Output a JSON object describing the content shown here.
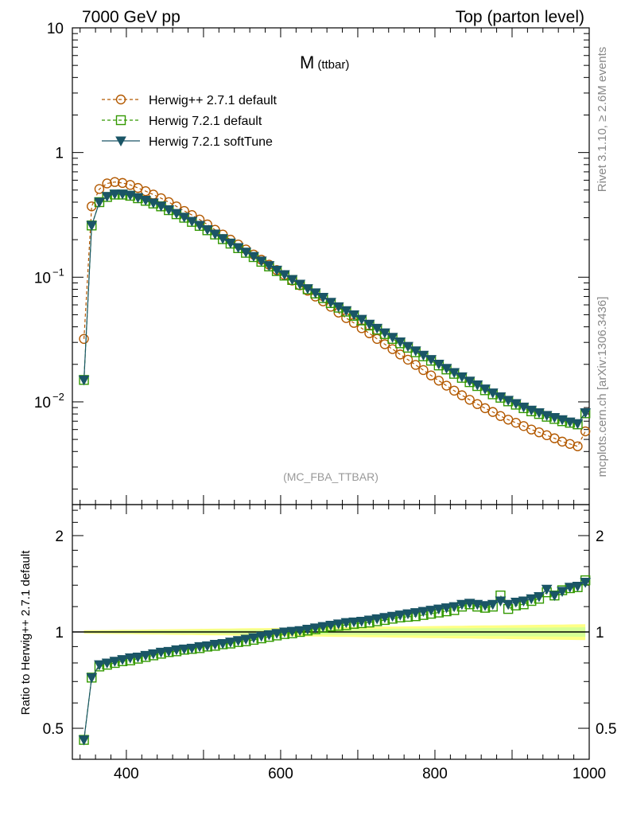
{
  "header": {
    "left": "7000 GeV pp",
    "right": "Top (parton level)"
  },
  "side_labels": {
    "rivet": "Rivet 3.1.10, ≥ 2.6M events",
    "source": "mcplots.cern.ch [arXiv:1306.3436]"
  },
  "chart_data": [
    {
      "type": "line",
      "title": "M",
      "title_sub": "(ttbar)",
      "watermark": "(MC_FBA_TTBAR)",
      "yscale": "log",
      "xlim": [
        330,
        1000
      ],
      "ylim": [
        0.0015,
        10
      ],
      "y_ticks": [
        {
          "v": 10,
          "label": "10"
        },
        {
          "v": 1,
          "label": "1"
        },
        {
          "v": 0.1,
          "label": "10",
          "exp": "−1"
        },
        {
          "v": 0.01,
          "label": "10",
          "exp": "−2"
        }
      ],
      "legend_position": "top-left",
      "x": [
        345,
        355,
        365,
        375,
        385,
        395,
        405,
        415,
        425,
        435,
        445,
        455,
        465,
        475,
        485,
        495,
        505,
        515,
        525,
        535,
        545,
        555,
        565,
        575,
        585,
        595,
        605,
        615,
        625,
        635,
        645,
        655,
        665,
        675,
        685,
        695,
        705,
        715,
        725,
        735,
        745,
        755,
        765,
        775,
        785,
        795,
        805,
        815,
        825,
        835,
        845,
        855,
        865,
        875,
        885,
        895,
        905,
        915,
        925,
        935,
        945,
        955,
        965,
        975,
        985,
        995
      ],
      "series": [
        {
          "name": "Herwig++ 2.7.1 default",
          "color": "#b35900",
          "marker": "circle-open",
          "dash": "4,3",
          "values": [
            0.032,
            0.37,
            0.51,
            0.565,
            0.58,
            0.57,
            0.55,
            0.52,
            0.49,
            0.46,
            0.43,
            0.4,
            0.37,
            0.34,
            0.315,
            0.29,
            0.265,
            0.24,
            0.22,
            0.2,
            0.183,
            0.167,
            0.152,
            0.138,
            0.126,
            0.114,
            0.104,
            0.094,
            0.086,
            0.078,
            0.07,
            0.064,
            0.058,
            0.052,
            0.047,
            0.043,
            0.039,
            0.0355,
            0.032,
            0.029,
            0.0265,
            0.024,
            0.0218,
            0.0198,
            0.018,
            0.0163,
            0.0148,
            0.0135,
            0.0123,
            0.0113,
            0.0104,
            0.0096,
            0.0089,
            0.0083,
            0.0077,
            0.0072,
            0.0068,
            0.0064,
            0.006,
            0.0057,
            0.0054,
            0.0051,
            0.0048,
            0.0046,
            0.0044,
            0.0058
          ]
        },
        {
          "name": "Herwig 7.2.1 default",
          "color": "#339900",
          "marker": "square-open",
          "dash": "4,3",
          "values": [
            0.015,
            0.26,
            0.4,
            0.44,
            0.46,
            0.46,
            0.45,
            0.43,
            0.41,
            0.39,
            0.37,
            0.345,
            0.32,
            0.3,
            0.278,
            0.258,
            0.238,
            0.22,
            0.202,
            0.186,
            0.171,
            0.157,
            0.145,
            0.133,
            0.122,
            0.112,
            0.103,
            0.095,
            0.087,
            0.08,
            0.074,
            0.068,
            0.062,
            0.057,
            0.053,
            0.049,
            0.045,
            0.041,
            0.038,
            0.035,
            0.032,
            0.0295,
            0.0272,
            0.025,
            0.0232,
            0.0214,
            0.0196,
            0.0182,
            0.0168,
            0.0156,
            0.0144,
            0.0134,
            0.0124,
            0.0115,
            0.0108,
            0.0101,
            0.0095,
            0.0089,
            0.0084,
            0.008,
            0.0076,
            0.0073,
            0.007,
            0.0068,
            0.0066,
            0.0081
          ]
        },
        {
          "name": "Herwig 7.2.1 softTune",
          "color": "#1a5566",
          "marker": "triangle-down-filled",
          "dash": "",
          "values": [
            0.015,
            0.26,
            0.4,
            0.445,
            0.465,
            0.465,
            0.455,
            0.435,
            0.415,
            0.395,
            0.372,
            0.348,
            0.325,
            0.303,
            0.281,
            0.261,
            0.241,
            0.222,
            0.204,
            0.188,
            0.173,
            0.159,
            0.147,
            0.135,
            0.124,
            0.114,
            0.105,
            0.096,
            0.088,
            0.081,
            0.075,
            0.069,
            0.063,
            0.058,
            0.054,
            0.05,
            0.046,
            0.042,
            0.039,
            0.0358,
            0.033,
            0.0303,
            0.0279,
            0.0257,
            0.0237,
            0.0219,
            0.0201,
            0.0186,
            0.0172,
            0.0159,
            0.0147,
            0.0137,
            0.0127,
            0.0118,
            0.011,
            0.0103,
            0.0097,
            0.0091,
            0.0086,
            0.0082,
            0.0078,
            0.0075,
            0.0072,
            0.0069,
            0.0067,
            0.0082
          ]
        }
      ]
    },
    {
      "type": "line",
      "ylabel": "Ratio to Herwig++ 2.7.1 default",
      "yscale": "log",
      "xlim": [
        330,
        1000
      ],
      "ylim": [
        0.4,
        2.5
      ],
      "y_ticks": [
        {
          "v": 2,
          "label": "2"
        },
        {
          "v": 1,
          "label": "1"
        },
        {
          "v": 0.5,
          "label": "0.5"
        }
      ],
      "x_ticks": [
        {
          "v": 400,
          "label": "400"
        },
        {
          "v": 600,
          "label": "600"
        },
        {
          "v": 800,
          "label": "800"
        },
        {
          "v": 1000,
          "label": "1000"
        }
      ],
      "reference": {
        "value": 1,
        "band_color": "#ffff66",
        "band_color_inner": "#ccff99"
      },
      "x": [
        345,
        355,
        365,
        375,
        385,
        395,
        405,
        415,
        425,
        435,
        445,
        455,
        465,
        475,
        485,
        495,
        505,
        515,
        525,
        535,
        545,
        555,
        565,
        575,
        585,
        595,
        605,
        615,
        625,
        635,
        645,
        655,
        665,
        675,
        685,
        695,
        705,
        715,
        725,
        735,
        745,
        755,
        765,
        775,
        785,
        795,
        805,
        815,
        825,
        835,
        845,
        855,
        865,
        875,
        885,
        895,
        905,
        915,
        925,
        935,
        945,
        955,
        965,
        975,
        985,
        995
      ],
      "series": [
        {
          "name": "Herwig 7.2.1 default",
          "color": "#339900",
          "marker": "square-open",
          "dash": "4,3",
          "values": [
            0.46,
            0.72,
            0.78,
            0.79,
            0.8,
            0.81,
            0.815,
            0.825,
            0.835,
            0.845,
            0.855,
            0.865,
            0.87,
            0.88,
            0.885,
            0.89,
            0.9,
            0.905,
            0.915,
            0.92,
            0.93,
            0.935,
            0.945,
            0.955,
            0.965,
            0.975,
            0.985,
            0.99,
            1.0,
            1.01,
            1.02,
            1.03,
            1.04,
            1.045,
            1.05,
            1.06,
            1.065,
            1.07,
            1.08,
            1.09,
            1.1,
            1.11,
            1.115,
            1.12,
            1.13,
            1.14,
            1.15,
            1.16,
            1.17,
            1.2,
            1.22,
            1.2,
            1.19,
            1.2,
            1.3,
            1.18,
            1.21,
            1.22,
            1.25,
            1.27,
            1.33,
            1.3,
            1.35,
            1.37,
            1.38,
            1.45
          ]
        },
        {
          "name": "Herwig 7.2.1 softTune",
          "color": "#1a5566",
          "marker": "triangle-down-filled",
          "dash": "",
          "values": [
            0.46,
            0.72,
            0.79,
            0.8,
            0.81,
            0.82,
            0.83,
            0.835,
            0.845,
            0.855,
            0.865,
            0.87,
            0.88,
            0.885,
            0.89,
            0.9,
            0.905,
            0.915,
            0.92,
            0.93,
            0.94,
            0.95,
            0.96,
            0.97,
            0.98,
            0.99,
            1.0,
            1.005,
            1.01,
            1.02,
            1.03,
            1.04,
            1.05,
            1.06,
            1.07,
            1.075,
            1.08,
            1.09,
            1.1,
            1.11,
            1.12,
            1.13,
            1.14,
            1.15,
            1.16,
            1.17,
            1.18,
            1.19,
            1.2,
            1.22,
            1.23,
            1.22,
            1.21,
            1.22,
            1.25,
            1.22,
            1.24,
            1.25,
            1.27,
            1.29,
            1.36,
            1.3,
            1.34,
            1.38,
            1.39,
            1.43
          ]
        }
      ]
    }
  ]
}
